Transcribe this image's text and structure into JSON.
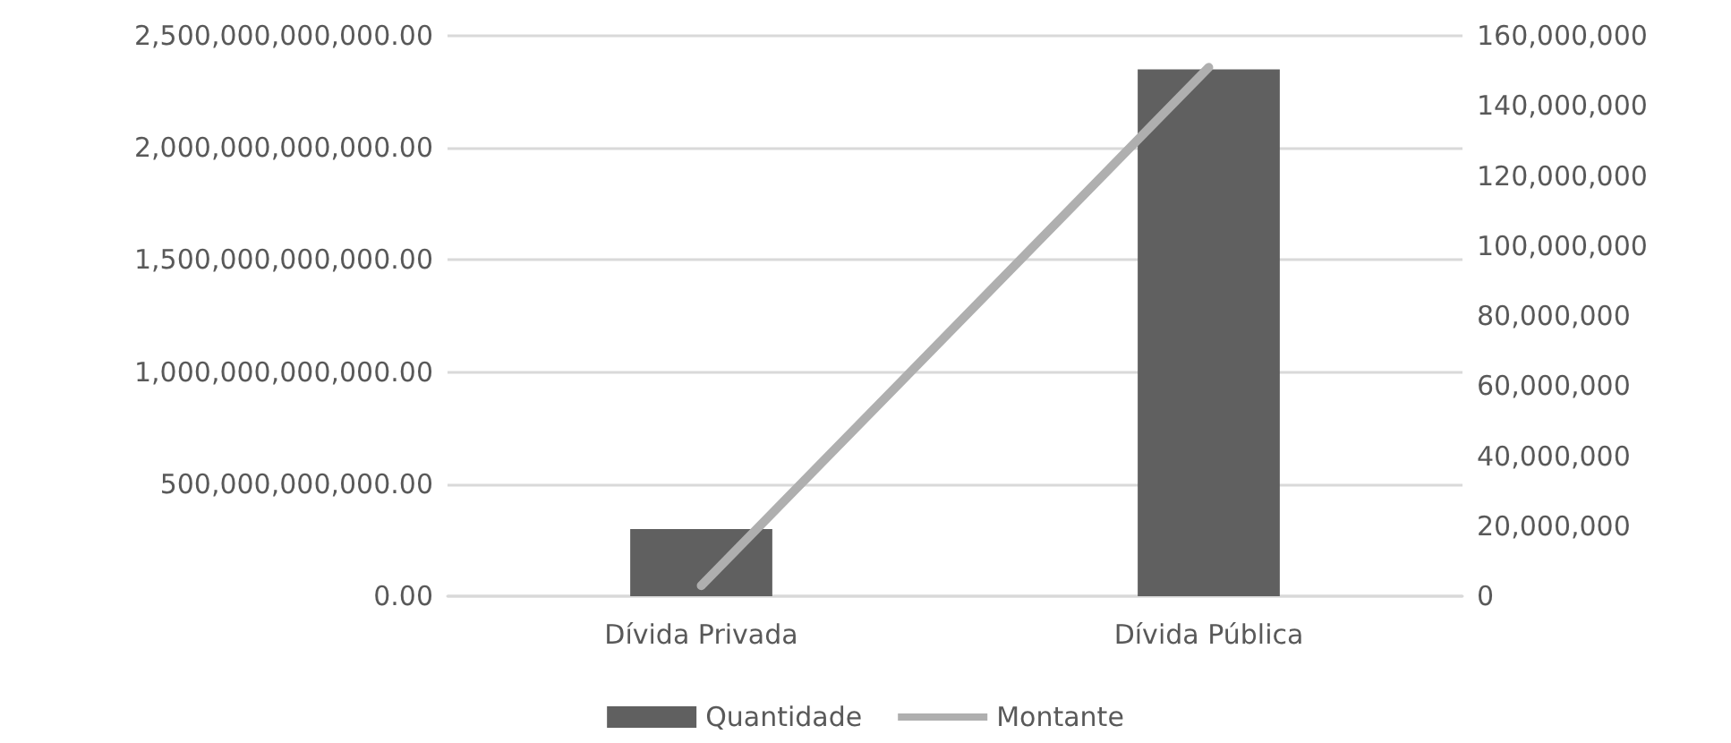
{
  "chart_data": {
    "type": "bar",
    "categories": [
      "Dívida Privada",
      "Dívida Pública"
    ],
    "series": [
      {
        "name": "Quantidade",
        "color": "#606060",
        "values": [
          300000000000,
          2350000000000
        ]
      },
      {
        "name": "Montante",
        "type": "line",
        "axis": "y2",
        "color": "#afafaf",
        "values": [
          3000000,
          151000000
        ]
      }
    ],
    "ylim": [
      0,
      2500000000000
    ],
    "yticks": [
      {
        "value": 0,
        "label": "0.00"
      },
      {
        "value": 500000000000,
        "label": "500,000,000,000.00"
      },
      {
        "value": 1000000000000,
        "label": "1,000,000,000,000.00"
      },
      {
        "value": 1500000000000,
        "label": "1,500,000,000,000.00"
      },
      {
        "value": 2000000000000,
        "label": "2,000,000,000,000.00"
      },
      {
        "value": 2500000000000,
        "label": "2,500,000,000,000.00"
      }
    ],
    "y2lim": [
      0,
      160000000
    ],
    "y2ticks": [
      0,
      {
        "value": 20000000,
        "label": "20,000,000"
      },
      {
        "value": 40000000,
        "label": "40,000,000"
      },
      {
        "value": 60000000,
        "label": "60,000,000"
      },
      {
        "value": 80000000,
        "label": "80,000,000"
      },
      {
        "value": 100000000,
        "label": "100,000,000"
      },
      {
        "value": 120000000,
        "label": "120,000,000"
      },
      {
        "value": 140000000,
        "label": "140,000,000"
      },
      {
        "value": 160000000,
        "label": "160,000,000"
      }
    ],
    "grid": "y",
    "legend": "bottom",
    "marker": "none",
    "line_style": "solid"
  }
}
